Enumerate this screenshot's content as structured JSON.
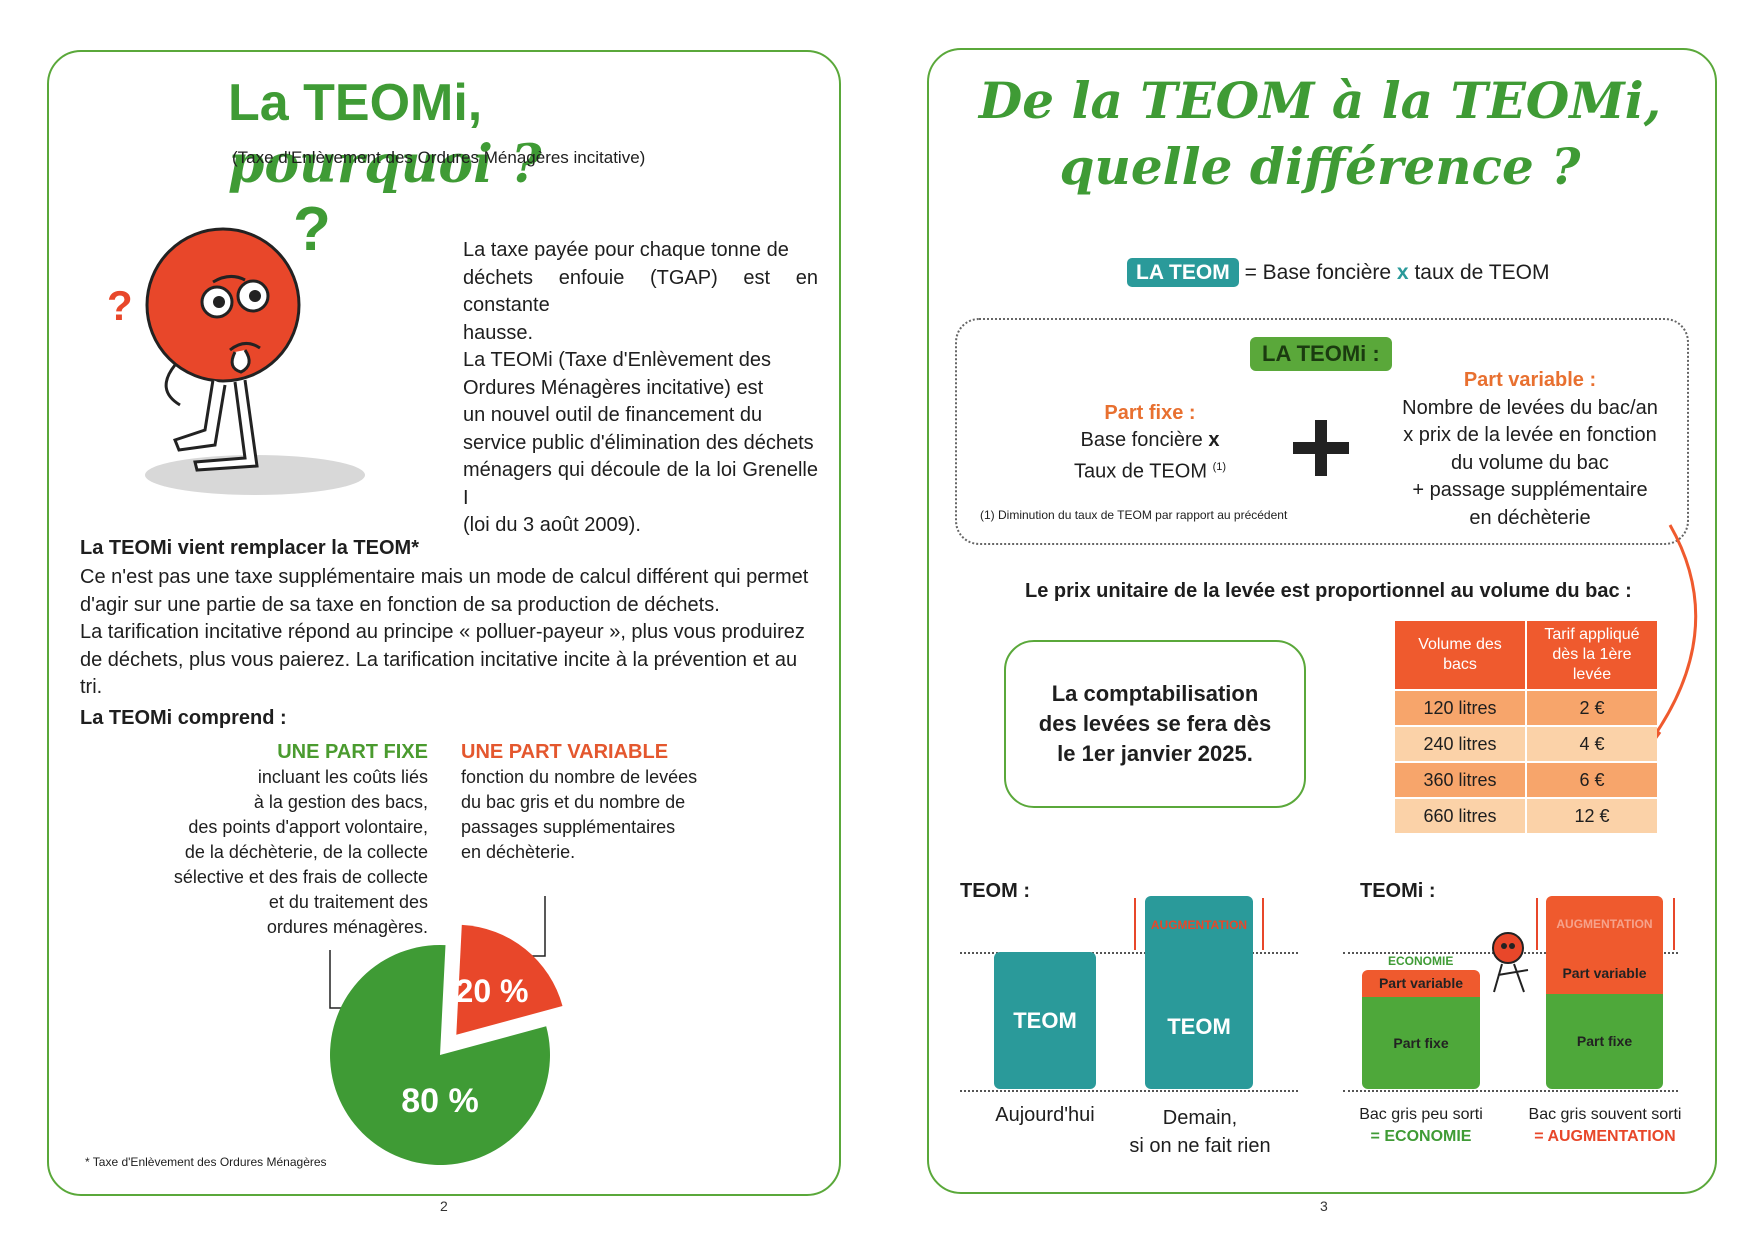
{
  "left": {
    "title_main": "La TEOMi,",
    "title_script": "pourquoi ?",
    "subtitle": "(Taxe d'Enlèvement des Ordures Ménagères incitative)",
    "intro_lines": [
      "La taxe payée pour chaque tonne de",
      "déchets enfouie (TGAP) est en constante",
      "hausse.",
      "La TEOMi (Taxe d'Enlèvement des",
      "Ordures Ménagères incitative) est",
      "un nouvel outil de financement du",
      "service public d'élimination des déchets",
      "ménagers qui découle de la loi Grenelle I",
      "(loi du 3 août 2009)."
    ],
    "replace_heading": "La TEOMi vient remplacer la TEOM*",
    "replace_lines": [
      "Ce n'est pas une taxe supplémentaire mais un mode de calcul différent qui permet",
      "d'agir sur une partie de sa taxe en fonction de sa production de déchets.",
      "La tarification incitative répond au principe « polluer-payeur », plus vous produirez",
      "de déchets, plus vous paierez. La tarification incitative incite à la prévention et au tri."
    ],
    "comprend_heading": "La TEOMi comprend :",
    "fixe_heading": "UNE PART FIXE",
    "fixe_lines": [
      "incluant les coûts liés",
      "à la gestion des bacs,",
      "des points d'apport volontaire,",
      "de la déchèterie, de la collecte",
      "sélective et des frais de collecte",
      "et du traitement des",
      "ordures ménagères."
    ],
    "variable_heading": "UNE PART VARIABLE",
    "variable_lines": [
      "fonction du nombre de levées",
      "du bac gris et du nombre de",
      "passages supplémentaires",
      "en déchèterie."
    ],
    "pie": {
      "fixe_label": "80 %",
      "variable_label": "20 %",
      "fixe_value": 80,
      "variable_value": 20,
      "fixe_color": "#3f9b35",
      "variable_color": "#e8472a"
    },
    "footnote": "* Taxe d'Enlèvement des Ordures Ménagères",
    "page_number": "2"
  },
  "right": {
    "title_line1": "De la TEOM à la TEOMi,",
    "title_line2": "quelle différence ?",
    "teom_badge": "LA TEOM",
    "teom_formula_a": "= Base foncière",
    "teom_formula_x": "x",
    "teom_formula_b": "taux de TEOM",
    "teomi_badge": "LA TEOMi :",
    "fixe_heading": "Part fixe :",
    "fixe_line1": "Base foncière",
    "fixe_x": "x",
    "fixe_line2": "Taux de TEOM",
    "fixe_note_mark": "(1)",
    "variable_heading": "Part variable :",
    "variable_lines": [
      "Nombre de levées du bac/an",
      "x prix de la levée en fonction",
      "du volume du bac",
      "+ passage supplémentaire",
      "en déchèterie"
    ],
    "box_footnote": "(1) Diminution du taux de TEOM par rapport au précédent",
    "proportion_heading": "Le prix unitaire de la levée est proportionnel au volume du bac :",
    "count_box": [
      "La comptabilisation",
      "des levées se fera dès",
      "le 1er janvier 2025."
    ],
    "table": {
      "col1": "Volume des bacs",
      "col2": "Tarif appliqué dès la 1ère levée",
      "rows": [
        {
          "volume": "120 litres",
          "tarif": "2 €"
        },
        {
          "volume": "240 litres",
          "tarif": "4 €"
        },
        {
          "volume": "360 litres",
          "tarif": "6 €"
        },
        {
          "volume": "660 litres",
          "tarif": "12 €"
        }
      ]
    },
    "teom_section": "TEOM :",
    "teomi_section": "TEOMi :",
    "bar_teom": "TEOM",
    "augmentation": "AUGMENTATION",
    "economie": "ECONOMIE",
    "part_variable": "Part variable",
    "part_fixe": "Part fixe",
    "today": "Aujourd'hui",
    "tomorrow_1": "Demain,",
    "tomorrow_2": "si on ne fait rien",
    "bac_peu": "Bac gris peu sorti",
    "eq_economie": "= ECONOMIE",
    "bac_souvent": "Bac gris souvent sorti",
    "eq_augmentation": "= AUGMENTATION",
    "page_number": "3"
  }
}
